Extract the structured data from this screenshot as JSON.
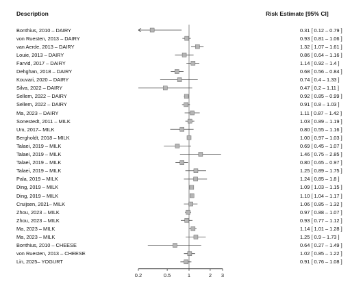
{
  "header": {
    "left": "Description",
    "right": "Risk Estimate [95% CI]"
  },
  "chart_data": {
    "type": "forest",
    "x_scale": "log",
    "xlim": [
      0.2,
      3
    ],
    "xticks": [
      "0.2",
      "0.5",
      "1",
      "2",
      "3"
    ],
    "reference_line": 1,
    "rows": [
      {
        "label": "Bonthius, 2010 – DAIRY",
        "est": 0.31,
        "lo": 0.12,
        "hi": 0.79,
        "text": "0.31 [ 0.12 – 0.79 ]"
      },
      {
        "label": "von Ruesten, 2013 – DAIRY",
        "est": 0.93,
        "lo": 0.81,
        "hi": 1.06,
        "text": "0.93 [ 0.81 – 1.06 ]"
      },
      {
        "label": "van Aerde, 2013 – DAIRY",
        "est": 1.32,
        "lo": 1.07,
        "hi": 1.61,
        "text": "1.32 [ 1.07 – 1.61 ]"
      },
      {
        "label": "Louie, 2013 – DAIRY",
        "est": 0.86,
        "lo": 0.64,
        "hi": 1.16,
        "text": "0.86 [ 0.64 – 1.16 ]"
      },
      {
        "label": "Farvid, 2017 – DAIRY",
        "est": 1.14,
        "lo": 0.92,
        "hi": 1.4,
        "text": "1.14 [ 0.92 – 1.4 ]"
      },
      {
        "label": "Dehghan, 2018 – DAIRY",
        "est": 0.68,
        "lo": 0.56,
        "hi": 0.84,
        "text": "0.68 [ 0.56 – 0.84 ]"
      },
      {
        "label": "Kouvari, 2020 – DAIRY",
        "est": 0.74,
        "lo": 0.4,
        "hi": 1.33,
        "text": "0.74 [ 0.4 – 1.33 ]"
      },
      {
        "label": "Silva, 2022 – DAIRY",
        "est": 0.47,
        "lo": 0.2,
        "hi": 1.11,
        "text": "0.47 [ 0.2 – 1.11 ]"
      },
      {
        "label": "Sellem, 2022 – DAIRY",
        "est": 0.92,
        "lo": 0.85,
        "hi": 0.99,
        "text": "0.92 [ 0.85 – 0.99 ]"
      },
      {
        "label": "Sellem, 2022 – DAIRY",
        "est": 0.91,
        "lo": 0.8,
        "hi": 1.03,
        "text": "0.91 [ 0.8 – 1.03 ]"
      },
      {
        "label": "Ma, 2023 – DAIRY",
        "est": 1.11,
        "lo": 0.87,
        "hi": 1.42,
        "text": "1.11 [ 0.87 – 1.42 ]"
      },
      {
        "label": "Sonestedt, 2011 – MILK",
        "est": 1.03,
        "lo": 0.89,
        "hi": 1.19,
        "text": "1.03 [ 0.89 – 1.19 ]"
      },
      {
        "label": "Um, 2017– MILK",
        "est": 0.8,
        "lo": 0.55,
        "hi": 1.16,
        "text": "0.80 [ 0.55 – 1.16 ]"
      },
      {
        "label": "Bergholdt, 2018 – MILK",
        "est": 1.0,
        "lo": 0.97,
        "hi": 1.03,
        "text": "1.00 [ 0.97 – 1.03 ]"
      },
      {
        "label": "Talaei, 2019 – MILK",
        "est": 0.69,
        "lo": 0.45,
        "hi": 1.07,
        "text": "0.69 [ 0.45 – 1.07 ]"
      },
      {
        "label": "Talaei, 2019 – MILK",
        "est": 1.46,
        "lo": 0.75,
        "hi": 2.85,
        "text": "1.46 [ 0.75 – 2.85 ]"
      },
      {
        "label": "Talaei, 2019 – MILK",
        "est": 0.8,
        "lo": 0.65,
        "hi": 0.97,
        "text": "0.80 [ 0.65 – 0.97 ]"
      },
      {
        "label": "Talaei, 2019 – MILK",
        "est": 1.25,
        "lo": 0.89,
        "hi": 1.75,
        "text": "1.25 [ 0.89 – 1.75 ]"
      },
      {
        "label": "Pala, 2019 – MILK",
        "est": 1.24,
        "lo": 0.85,
        "hi": 1.8,
        "text": "1.24 [ 0.85 – 1.8 ]"
      },
      {
        "label": "Ding, 2019 – MILK",
        "est": 1.09,
        "lo": 1.03,
        "hi": 1.15,
        "text": "1.09 [ 1.03 – 1.15 ]"
      },
      {
        "label": "Ding, 2019 – MILK",
        "est": 1.1,
        "lo": 1.04,
        "hi": 1.17,
        "text": "1.10 [ 1.04 – 1.17 ]"
      },
      {
        "label": "Cruijsen, 2021– MILK",
        "est": 1.06,
        "lo": 0.85,
        "hi": 1.32,
        "text": "1.06 [ 0.85 – 1.32 ]"
      },
      {
        "label": "Zhou, 2023 – MILK",
        "est": 0.97,
        "lo": 0.88,
        "hi": 1.07,
        "text": "0.97 [ 0.88 – 1.07 ]"
      },
      {
        "label": "Zhou, 2023 – MILK",
        "est": 0.93,
        "lo": 0.77,
        "hi": 1.12,
        "text": "0.93 [ 0.77 – 1.12 ]"
      },
      {
        "label": "Ma, 2023 – MILK",
        "est": 1.14,
        "lo": 1.01,
        "hi": 1.28,
        "text": "1.14 [ 1.01 – 1.28 ]"
      },
      {
        "label": "Ma, 2023 – MILK",
        "est": 1.25,
        "lo": 0.9,
        "hi": 1.73,
        "text": "1.25 [ 0.9 – 1.73 ]"
      },
      {
        "label": "Bonthius, 2010 – CHEESE",
        "est": 0.64,
        "lo": 0.27,
        "hi": 1.49,
        "text": "0.64 [ 0.27 – 1.49 ]"
      },
      {
        "label": "von Ruesten, 2013 – CHEESE",
        "est": 1.02,
        "lo": 0.85,
        "hi": 1.22,
        "text": "1.02 [ 0.85 – 1.22 ]"
      },
      {
        "label": "Lin, 2025– YOGURT",
        "est": 0.91,
        "lo": 0.76,
        "hi": 1.08,
        "text": "0.91 [ 0.76 – 1.08 ]"
      }
    ]
  }
}
